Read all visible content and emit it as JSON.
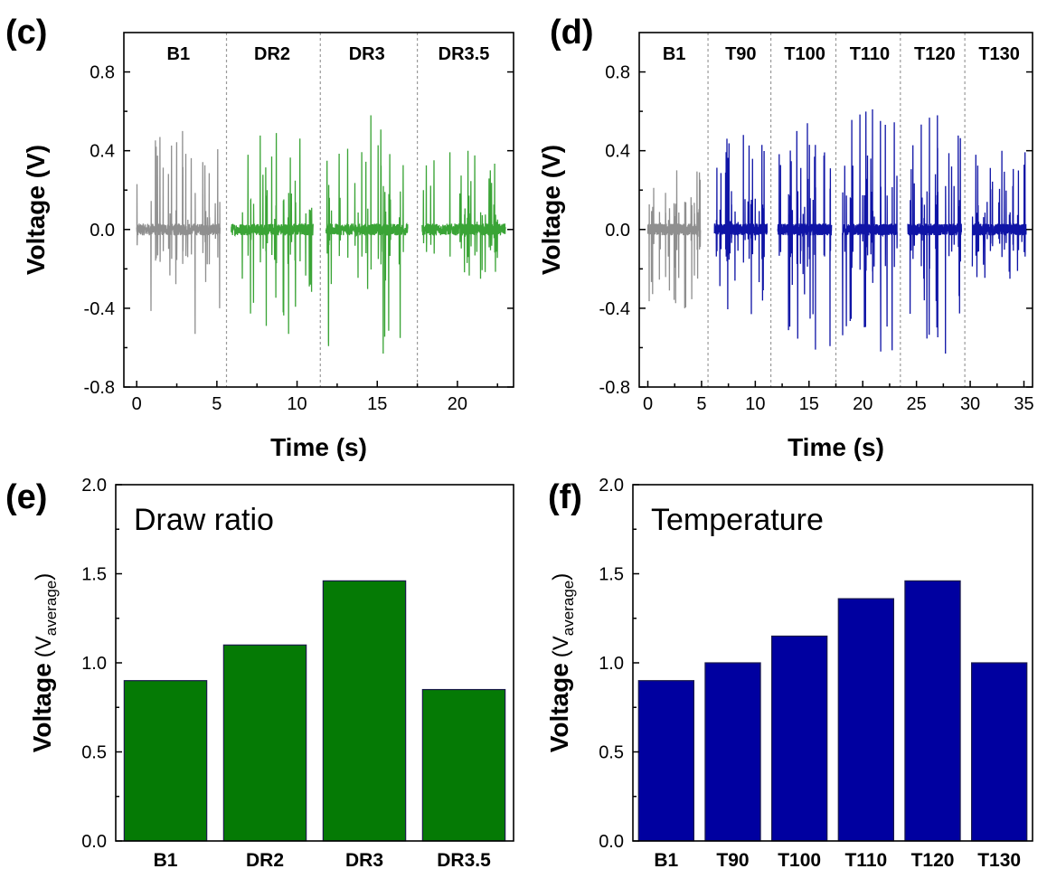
{
  "chart_data": [
    {
      "panel": "(c)",
      "type": "line",
      "xlabel": "Time (s)",
      "ylabel": "Voltage (V)",
      "xlim": [
        -0.8,
        23.5
      ],
      "ylim": [
        -0.8,
        1.0
      ],
      "xticks": [
        0,
        5,
        10,
        15,
        20
      ],
      "yticks": [
        -0.8,
        -0.4,
        0.0,
        0.4,
        0.8
      ],
      "segment_dividers": [
        5.6,
        11.45,
        17.5
      ],
      "series": [
        {
          "name": "B1",
          "t_range": [
            0.0,
            5.2
          ],
          "peak_max": 0.5,
          "peak_min": -0.53,
          "color": "#8f8f8f"
        },
        {
          "name": "DR2",
          "t_range": [
            5.9,
            11.0
          ],
          "peak_max": 0.49,
          "peak_min": -0.53,
          "color": "#3aa436"
        },
        {
          "name": "DR3",
          "t_range": [
            11.8,
            16.9
          ],
          "peak_max": 0.58,
          "peak_min": -0.63,
          "color": "#3aa436"
        },
        {
          "name": "DR3.5",
          "t_range": [
            17.8,
            23.0
          ],
          "peak_max": 0.4,
          "peak_min": -0.25,
          "color": "#3aa436"
        }
      ]
    },
    {
      "panel": "(d)",
      "type": "line",
      "xlabel": "Time (s)",
      "ylabel": "Voltage (V)",
      "xlim": [
        -0.8,
        35.8
      ],
      "ylim": [
        -0.8,
        1.0
      ],
      "xticks": [
        0,
        5,
        10,
        15,
        20,
        25,
        30,
        35
      ],
      "yticks": [
        -0.8,
        -0.4,
        0.0,
        0.4,
        0.8
      ],
      "segment_dividers": [
        5.6,
        11.45,
        17.5,
        23.5,
        29.5
      ],
      "series": [
        {
          "name": "B1",
          "t_range": [
            0.0,
            4.9
          ],
          "peak_max": 0.3,
          "peak_min": -0.4,
          "color": "#8f8f8f"
        },
        {
          "name": "T90",
          "t_range": [
            6.2,
            11.1
          ],
          "peak_max": 0.48,
          "peak_min": -0.43,
          "color": "#0f14a6"
        },
        {
          "name": "T100",
          "t_range": [
            12.1,
            17.1
          ],
          "peak_max": 0.54,
          "peak_min": -0.61,
          "color": "#0f14a6"
        },
        {
          "name": "T110",
          "t_range": [
            18.1,
            23.2
          ],
          "peak_max": 0.61,
          "peak_min": -0.62,
          "color": "#0f14a6"
        },
        {
          "name": "T120",
          "t_range": [
            24.2,
            29.2
          ],
          "peak_max": 0.58,
          "peak_min": -0.63,
          "color": "#0f14a6"
        },
        {
          "name": "T130",
          "t_range": [
            30.2,
            35.2
          ],
          "peak_max": 0.4,
          "peak_min": -0.25,
          "color": "#0f14a6"
        }
      ]
    },
    {
      "panel": "(e)",
      "type": "bar",
      "title": "Draw ratio",
      "ylabel_main": "Voltage",
      "ylabel_sub_open": "(V",
      "ylabel_sub": "average",
      "ylabel_sub_close": ")",
      "ylim": [
        0,
        2.0
      ],
      "yticks": [
        0.0,
        0.5,
        1.0,
        1.5,
        2.0
      ],
      "categories": [
        "B1",
        "DR2",
        "DR3",
        "DR3.5"
      ],
      "values": [
        0.9,
        1.1,
        1.46,
        0.85
      ],
      "bar_color": "#057a05"
    },
    {
      "panel": "(f)",
      "type": "bar",
      "title": "Temperature",
      "ylabel_main": "Voltage",
      "ylabel_sub_open": "(V",
      "ylabel_sub": "average",
      "ylabel_sub_close": ")",
      "ylim": [
        0,
        2.0
      ],
      "yticks": [
        0.0,
        0.5,
        1.0,
        1.5,
        2.0
      ],
      "categories": [
        "B1",
        "T90",
        "T100",
        "T110",
        "T120",
        "T130"
      ],
      "values": [
        0.9,
        1.0,
        1.15,
        1.36,
        1.46,
        1.0
      ],
      "bar_color": "#0000a0"
    }
  ]
}
